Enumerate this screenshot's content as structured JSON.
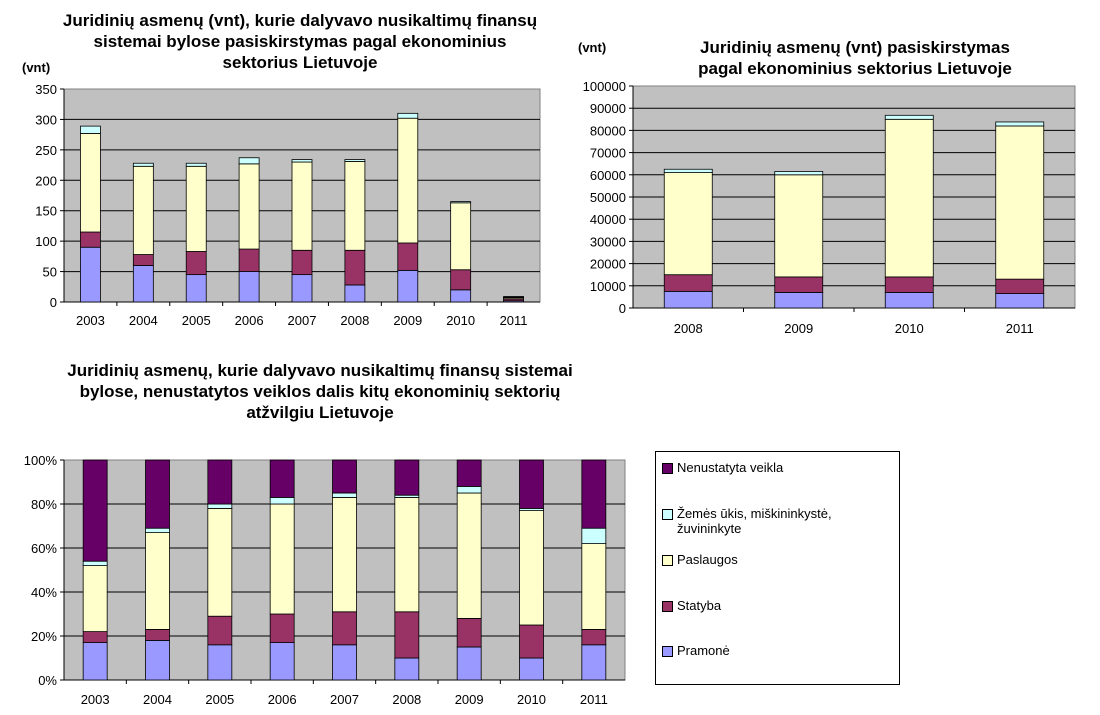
{
  "colors": {
    "Pramonė": "#9999ff",
    "Statyba": "#993366",
    "Paslaugos": "#ffffcc",
    "Žemės ūkis": "#ccffff",
    "Nenustatyta veikla": "#660066"
  },
  "legend": {
    "items": [
      {
        "label": "Nenustatyta veikla",
        "key": "Nenustatyta veikla"
      },
      {
        "label": "Žemės ūkis, miškininkystė, žuvininkyte",
        "key": "Žemės ūkis"
      },
      {
        "label": "Paslaugos",
        "key": "Paslaugos"
      },
      {
        "label": "Statyba",
        "key": "Statyba"
      },
      {
        "label": "Pramonė",
        "key": "Pramonė"
      }
    ]
  },
  "chart_data": [
    {
      "type": "bar",
      "stacked": true,
      "title": "Juridinių asmenų (vnt), kurie dalyvavo nusikaltimų finansų sistemai bylose pasiskirstymas pagal ekonominius sektorius Lietuvoje",
      "title_lines": [
        "Juridinių asmenų (vnt), kurie dalyvavo nusikaltimų finansų",
        "sistemai bylose pasiskirstymas pagal ekonominius",
        "sektorius Lietuvoje"
      ],
      "ylabel": "(vnt)",
      "categories": [
        "2003",
        "2004",
        "2005",
        "2006",
        "2007",
        "2008",
        "2009",
        "2010",
        "2011"
      ],
      "ylim": [
        0,
        350
      ],
      "yticks": [
        0,
        50,
        100,
        150,
        200,
        250,
        300,
        350
      ],
      "grid": true,
      "series": [
        {
          "name": "Pramonė",
          "values": [
            90,
            60,
            45,
            50,
            45,
            28,
            52,
            20,
            2
          ]
        },
        {
          "name": "Statyba",
          "values": [
            25,
            18,
            38,
            37,
            40,
            57,
            45,
            33,
            3
          ]
        },
        {
          "name": "Paslaugos",
          "values": [
            162,
            145,
            140,
            140,
            145,
            146,
            205,
            110,
            2
          ]
        },
        {
          "name": "Žemės ūkis",
          "values": [
            12,
            5,
            5,
            10,
            4,
            3,
            8,
            2,
            1
          ]
        },
        {
          "name": "Nenustatyta veikla",
          "values": [
            0,
            0,
            0,
            0,
            0,
            0,
            0,
            0,
            1
          ]
        }
      ]
    },
    {
      "type": "bar",
      "stacked": true,
      "title": "Juridinių asmenų (vnt) pasiskirstymas pagal ekonominius sektorius Lietuvoje",
      "title_lines": [
        "Juridinių asmenų (vnt) pasiskirstymas",
        "pagal ekonominius sektorius Lietuvoje"
      ],
      "ylabel": "(vnt)",
      "categories": [
        "2008",
        "2009",
        "2010",
        "2011"
      ],
      "ylim": [
        0,
        100000
      ],
      "yticks": [
        0,
        10000,
        20000,
        30000,
        40000,
        50000,
        60000,
        70000,
        80000,
        90000,
        100000
      ],
      "grid": true,
      "series": [
        {
          "name": "Pramonė",
          "values": [
            7500,
            7000,
            7000,
            6500
          ]
        },
        {
          "name": "Statyba",
          "values": [
            7500,
            7000,
            7000,
            6500
          ]
        },
        {
          "name": "Paslaugos",
          "values": [
            46000,
            46000,
            71000,
            69000
          ]
        },
        {
          "name": "Žemės ūkis",
          "values": [
            1500,
            1500,
            1800,
            1800
          ]
        }
      ]
    },
    {
      "type": "bar",
      "stacked": true,
      "percent": true,
      "title": "Juridinių asmenų, kurie dalyvavo nusikaltimų finansų sistemai bylose, nenustatytos veiklos dalis kitų ekonominių sektorių atžvilgiu Lietuvoje",
      "title_lines": [
        "Juridinių asmenų, kurie dalyvavo nusikaltimų finansų sistemai",
        "bylose, nenustatytos veiklos dalis kitų ekonominių sektorių",
        "atžvilgiu Lietuvoje"
      ],
      "categories": [
        "2003",
        "2004",
        "2005",
        "2006",
        "2007",
        "2008",
        "2009",
        "2010",
        "2011"
      ],
      "ylim": [
        0,
        100
      ],
      "yticks": [
        "0%",
        "20%",
        "40%",
        "60%",
        "80%",
        "100%"
      ],
      "grid": true,
      "legend": "right",
      "series": [
        {
          "name": "Pramonė",
          "values": [
            17,
            18,
            16,
            17,
            16,
            10,
            15,
            10,
            16
          ]
        },
        {
          "name": "Statyba",
          "values": [
            5,
            5,
            13,
            13,
            15,
            21,
            13,
            15,
            7
          ]
        },
        {
          "name": "Paslaugos",
          "values": [
            30,
            44,
            49,
            50,
            52,
            52,
            57,
            52,
            39
          ]
        },
        {
          "name": "Žemės ūkis",
          "values": [
            2,
            2,
            2,
            3,
            2,
            1,
            3,
            1,
            7
          ]
        },
        {
          "name": "Nenustatyta veikla",
          "values": [
            46,
            31,
            20,
            17,
            15,
            16,
            12,
            22,
            31
          ]
        }
      ]
    }
  ]
}
